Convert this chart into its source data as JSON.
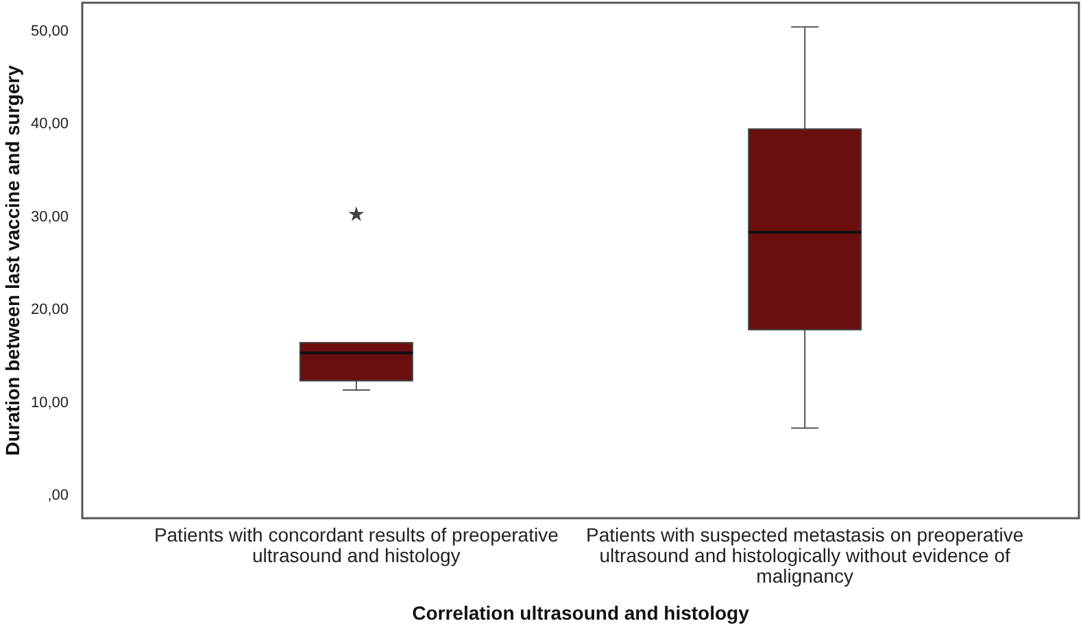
{
  "chart_data": {
    "type": "box",
    "xlabel": "Correlation ultrasound and histology",
    "ylabel": "Duration between last vaccine and surgery",
    "categories": [
      "Patients with concordant results of preoperative ultrasound and histology",
      "Patients with suspected metastasis on preoperative ultrasound and histologically without evidence of malignancy"
    ],
    "color": "#6b0e0e",
    "boxes": [
      {
        "low": 11.3,
        "q1": 12.3,
        "median": 15.3,
        "q3": 16.4,
        "high": 16.4,
        "outliers": [
          30.2
        ]
      },
      {
        "low": 7.2,
        "q1": 17.8,
        "median": 28.3,
        "q3": 39.4,
        "high": 50.4
      }
    ],
    "ylim": [
      -2.5,
      53
    ],
    "yticks": [
      {
        "value": 0,
        "label": ",00"
      },
      {
        "value": 10,
        "label": "10,00"
      },
      {
        "value": 20,
        "label": "20,00"
      },
      {
        "value": 30,
        "label": "30,00"
      },
      {
        "value": 40,
        "label": "40,00"
      },
      {
        "value": 50,
        "label": "50,00"
      }
    ],
    "grid": false
  }
}
